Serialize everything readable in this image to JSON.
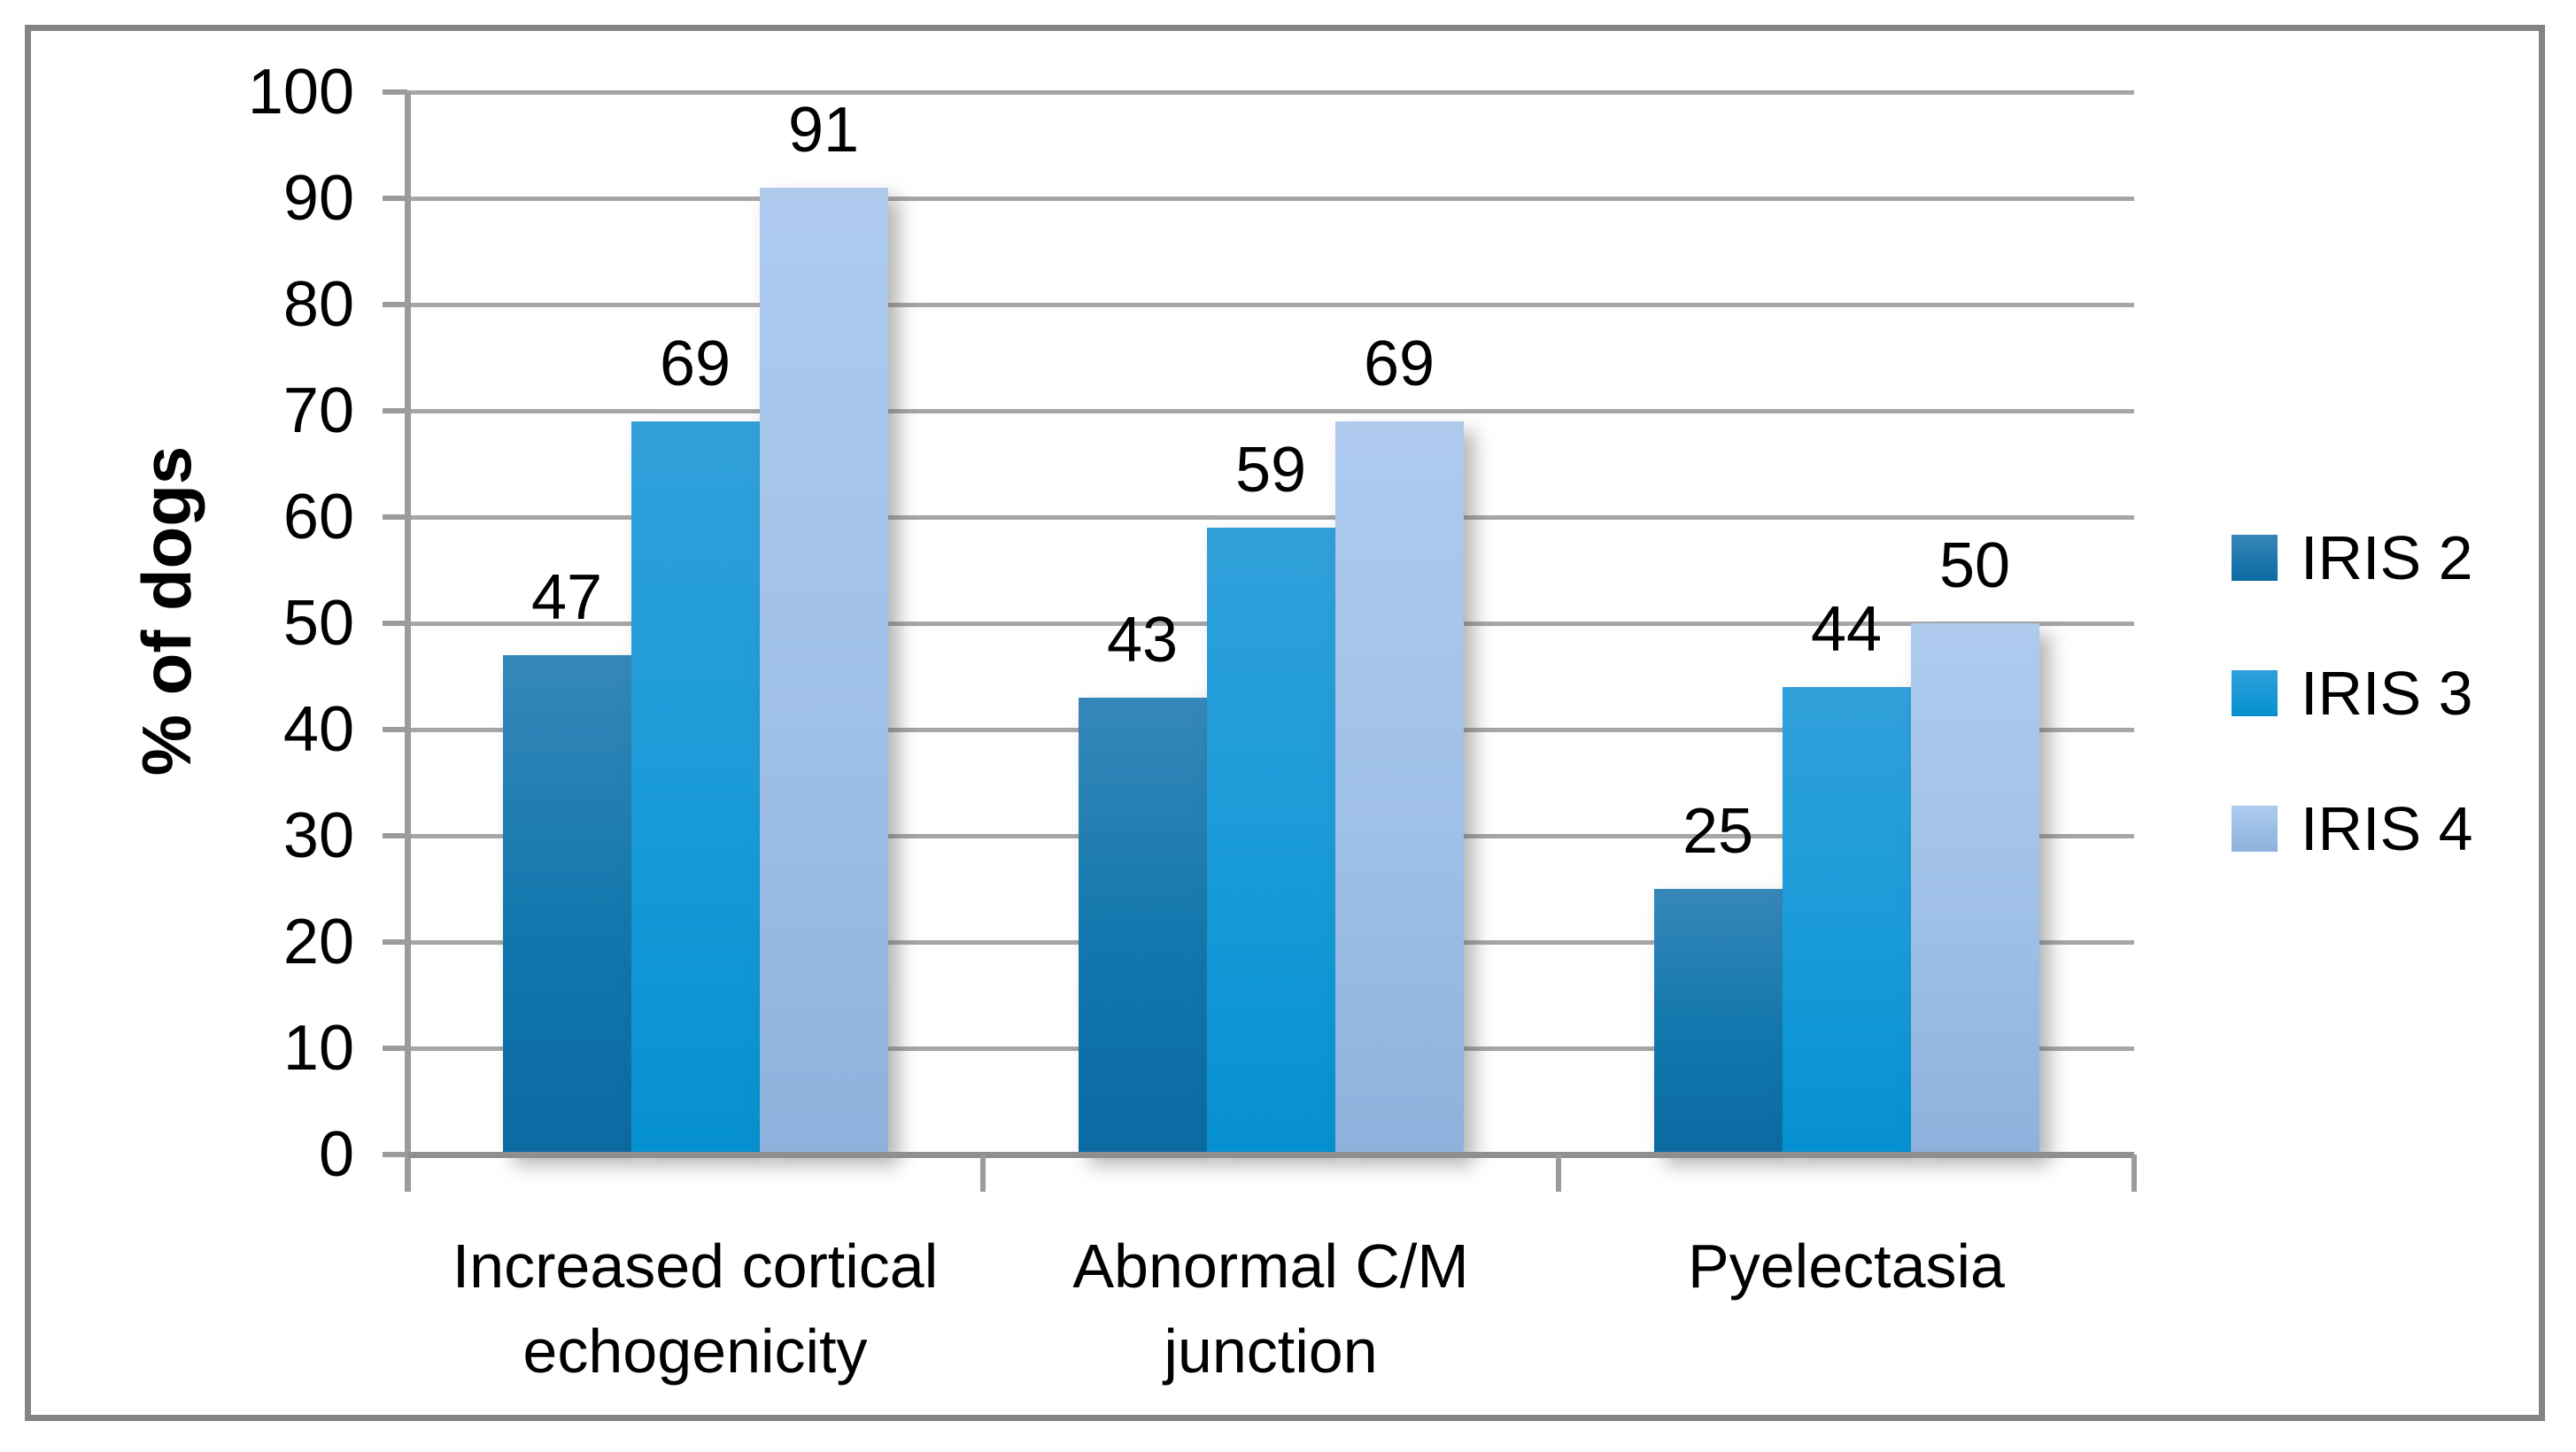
{
  "chart_data": {
    "type": "bar",
    "title": "",
    "xlabel": "",
    "ylabel": "% of dogs",
    "ylim": [
      0,
      100
    ],
    "yticks": [
      0,
      10,
      20,
      30,
      40,
      50,
      60,
      70,
      80,
      90,
      100
    ],
    "grid": true,
    "legend_position": "right",
    "value_labels": true,
    "categories": [
      "Increased cortical echogenicity",
      "Abnormal C/M junction",
      "Pyelectasia"
    ],
    "category_lines": [
      [
        "Increased cortical",
        "echogenicity"
      ],
      [
        "Abnormal C/M",
        "junction"
      ],
      [
        "Pyelectasia"
      ]
    ],
    "series": [
      {
        "name": "IRIS 2",
        "values": [
          47,
          43,
          25
        ],
        "color_top": "#3687b9",
        "color_mid": "#1177ad",
        "color_bottom": "#0b6aa2"
      },
      {
        "name": "IRIS 3",
        "values": [
          69,
          59,
          44
        ],
        "color_top": "#31a0da",
        "color_mid": "#189bd8",
        "color_bottom": "#0590d0"
      },
      {
        "name": "IRIS 4",
        "values": [
          91,
          69,
          50
        ],
        "color_top": "#aecbee",
        "color_mid": "#9fc0e7",
        "color_bottom": "#8cb2dd"
      }
    ],
    "colors": {
      "gridline": "#a6a6a6",
      "axis": "#9b9b9b",
      "baseline": "#8f8f8f",
      "border": "#848484",
      "text": "#000000"
    }
  }
}
